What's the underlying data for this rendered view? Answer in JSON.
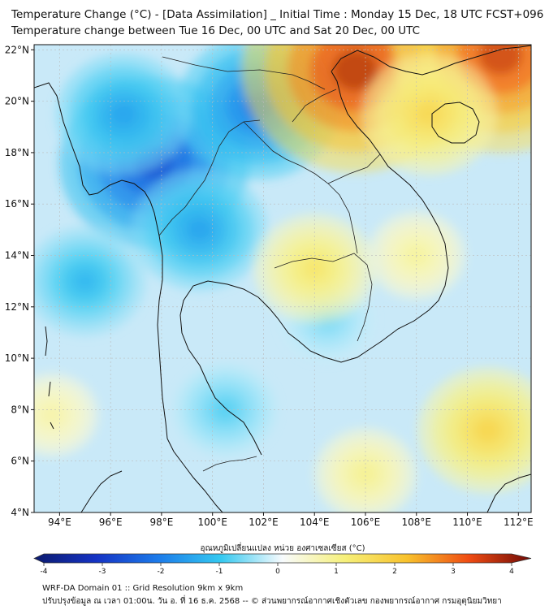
{
  "title_line1": "Temperature Change (°C) - [Data Assimilation] _ Initial Time : Monday 15 Dec, 18 UTC FCST+096",
  "title_line2": "Temperature change between Tue 16 Dec, 00 UTC and Sat 20 Dec, 00 UTC",
  "map": {
    "lon_range": [
      93,
      112.5
    ],
    "lat_range": [
      4,
      22.2
    ],
    "lon_ticks": [
      94,
      96,
      98,
      100,
      102,
      104,
      106,
      108,
      110,
      112
    ],
    "lon_tick_labels": [
      "94°E",
      "96°E",
      "98°E",
      "100°E",
      "102°E",
      "104°E",
      "106°E",
      "108°E",
      "110°E",
      "112°E"
    ],
    "lat_ticks": [
      4,
      6,
      8,
      10,
      12,
      14,
      16,
      18,
      20,
      22
    ],
    "lat_tick_labels": [
      "4°N",
      "6°N",
      "8°N",
      "10°N",
      "12°N",
      "14°N",
      "16°N",
      "18°N",
      "20°N",
      "22°N"
    ],
    "anomalies": [
      {
        "name": "cold-core-north-myanmar",
        "lon": 97.7,
        "lat": 17.6,
        "value": -2.8
      },
      {
        "name": "cold-north-laos",
        "lon": 101.8,
        "lat": 19.8,
        "value": -2.2
      },
      {
        "name": "cold-west-myanmar",
        "lon": 96.5,
        "lat": 19.5,
        "value": -1.6
      },
      {
        "name": "cold-andaman",
        "lon": 95.0,
        "lat": 13.0,
        "value": -1.3
      },
      {
        "name": "cold-upper-thailand",
        "lon": 99.5,
        "lat": 15.0,
        "value": -1.6
      },
      {
        "name": "cold-gulf-thailand",
        "lon": 100.5,
        "lat": 8.0,
        "value": -0.9
      },
      {
        "name": "cold-east-thailand",
        "lon": 104.5,
        "lat": 11.5,
        "value": -0.7
      },
      {
        "name": "hot-north-vietnam",
        "lon": 105.6,
        "lat": 21.2,
        "value": 3.6
      },
      {
        "name": "hot-south-china",
        "lon": 111.3,
        "lat": 21.8,
        "value": 3.4
      },
      {
        "name": "hot-hainan",
        "lon": 108.5,
        "lat": 19.5,
        "value": 1.6
      },
      {
        "name": "warm-cambodia",
        "lon": 104.0,
        "lat": 13.5,
        "value": 1.3
      },
      {
        "name": "warm-south-china-sea",
        "lon": 110.8,
        "lat": 7.2,
        "value": 1.7
      },
      {
        "name": "warm-vietnam-coast",
        "lon": 108.0,
        "lat": 14.0,
        "value": 0.8
      },
      {
        "name": "warm-southern-sea",
        "lon": 106.0,
        "lat": 5.5,
        "value": 0.9
      },
      {
        "name": "warm-sumatra-west",
        "lon": 93.7,
        "lat": 7.8,
        "value": 0.7
      }
    ],
    "colors": {
      "ocean_base": "#c9e9f8",
      "coastline": "#111111",
      "border": "#222222",
      "frame": "#111111",
      "grid": "#bbbbbb"
    }
  },
  "colorbar": {
    "title": "อุณหภูมิเปลี่ยนแปลง หน่วย องศาเซลเซียส (°C)",
    "min": -4,
    "max": 4,
    "ticks": [
      -4,
      -3,
      -2,
      -1,
      0,
      1,
      2,
      3,
      4
    ],
    "tick_labels": [
      "-4",
      "-3",
      "-2",
      "-1",
      "0",
      "1",
      "2",
      "3",
      "4"
    ],
    "stops": [
      {
        "value": -4,
        "color": "#0b1a6e"
      },
      {
        "value": -3,
        "color": "#1533c4"
      },
      {
        "value": -2,
        "color": "#1c7bea"
      },
      {
        "value": -1,
        "color": "#33c8f0"
      },
      {
        "value": 0,
        "color": "#f8fbfd"
      },
      {
        "value": 1,
        "color": "#f6f07a"
      },
      {
        "value": 2,
        "color": "#f8c22c"
      },
      {
        "value": 3,
        "color": "#ef4b12"
      },
      {
        "value": 4,
        "color": "#6e0a06"
      }
    ]
  },
  "footer_line1": "WRF-DA Domain 01 :: Grid Resolution 9km x 9km",
  "footer_line2": "ปรับปรุงข้อมูล ณ เวลา 01:00น. วัน อ. ที่ 16 ธ.ค. 2568 -- © ส่วนพยากรณ์อากาศเชิงตัวเลข กองพยากรณ์อากาศ กรมอุตุนิยมวิทยา"
}
